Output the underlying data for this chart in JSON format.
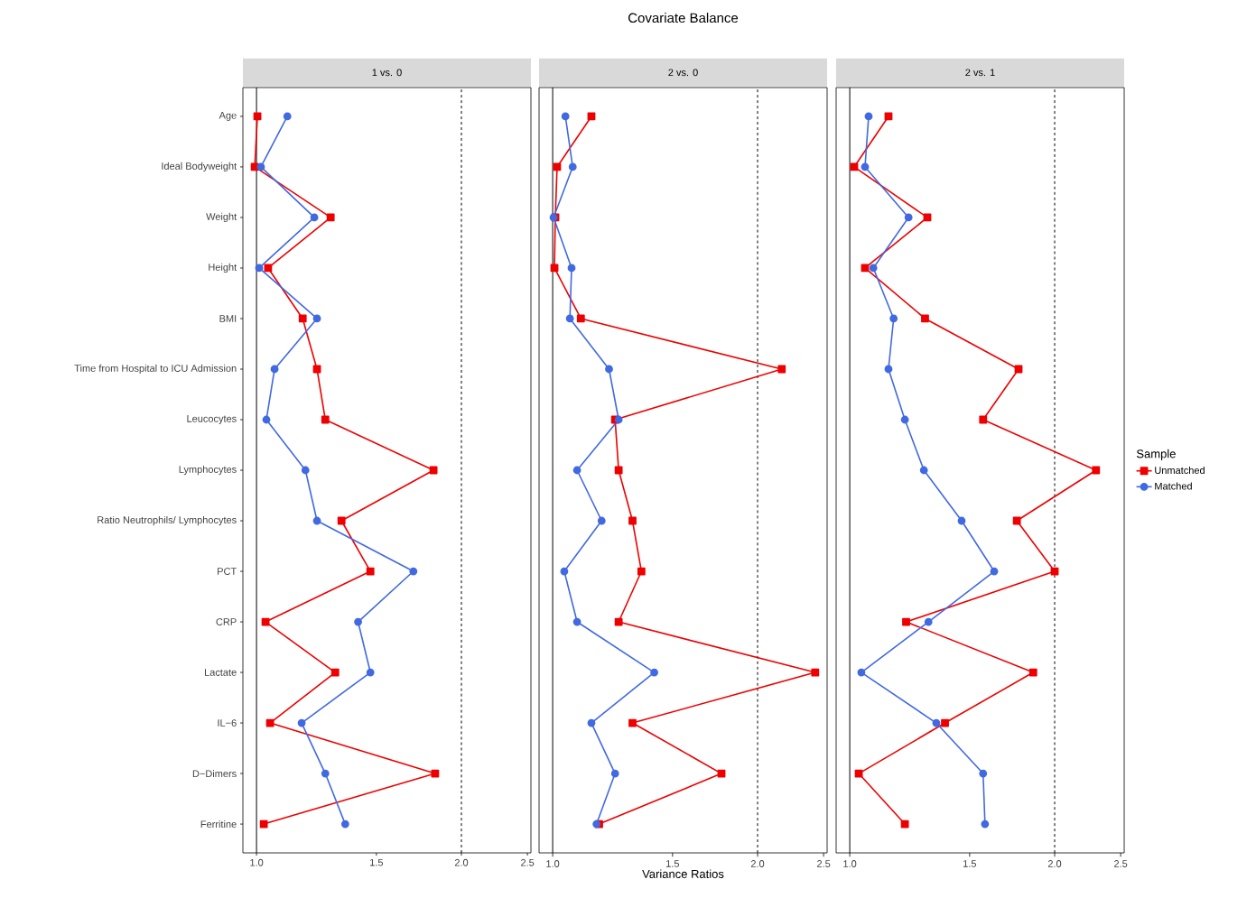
{
  "chart_data": [
    {
      "type": "line",
      "orientation": "horizontal",
      "subtitle": "1 vs. 0",
      "log": "x",
      "categories": [
        "Age",
        "Ideal Bodyweight",
        "Weight",
        "Height",
        "BMI",
        "Time from Hospital to ICU Admission",
        "Leucocytes",
        "Lymphocytes",
        "Ratio Neutrophils/ Lymphocytes",
        "PCT",
        "CRP",
        "Lactate",
        "IL−6",
        "D−Dimers",
        "Ferritine"
      ],
      "xlim": [
        0.955,
        2.53
      ],
      "xticks": [
        {
          "value": 1,
          "label": "1.0"
        },
        {
          "value": 1.5,
          "label": "1.5"
        },
        {
          "value": 2,
          "label": "2.0"
        },
        {
          "value": 2.5,
          "label": "2.5"
        }
      ],
      "ref_lines": [
        {
          "axis": "x",
          "value": 1,
          "line_style": "solid"
        },
        {
          "axis": "x",
          "value": 2,
          "line_style": "dashed"
        }
      ],
      "series": [
        {
          "color": "#ee0000",
          "marker": "square",
          "values": [
            1.003,
            0.994,
            1.285,
            1.04,
            1.169,
            1.227,
            1.262,
            1.82,
            1.333,
            1.47,
            1.031,
            1.305,
            1.047,
            1.83,
            1.025
          ]
        },
        {
          "color": "#4169e1",
          "marker": "circle",
          "values": [
            1.11,
            1.015,
            1.216,
            1.009,
            1.227,
            1.063,
            1.034,
            1.18,
            1.227,
            1.7,
            1.41,
            1.47,
            1.165,
            1.262,
            1.35
          ]
        }
      ]
    },
    {
      "type": "line",
      "orientation": "horizontal",
      "title": "Covariate Balance",
      "subtitle": "2 vs. 0",
      "xlabel": "Variance Ratios",
      "log": "x",
      "tick_labels": "x",
      "categories": [
        null,
        null,
        null,
        null,
        null,
        null,
        null,
        null,
        null,
        null,
        null,
        null,
        null,
        null,
        null
      ],
      "xlim": [
        0.955,
        2.53
      ],
      "xticks": [
        {
          "value": 1,
          "label": "1.0"
        },
        {
          "value": 1.5,
          "label": "1.5"
        },
        {
          "value": 2,
          "label": "2.0"
        },
        {
          "value": 2.5,
          "label": "2.5"
        }
      ],
      "ref_lines": [
        {
          "axis": "x",
          "value": 1,
          "line_style": "solid"
        },
        {
          "axis": "x",
          "value": 2,
          "line_style": "dashed"
        }
      ],
      "series": [
        {
          "color": "#ee0000",
          "marker": "square",
          "values": [
            1.14,
            1.015,
            1.009,
            1.006,
            1.1,
            2.17,
            1.235,
            1.25,
            1.31,
            1.35,
            1.25,
            2.43,
            1.31,
            1.77,
            1.17
          ]
        },
        {
          "color": "#4169e1",
          "marker": "circle",
          "values": [
            1.044,
            1.07,
            1.003,
            1.066,
            1.06,
            1.21,
            1.25,
            1.086,
            1.18,
            1.04,
            1.086,
            1.41,
            1.14,
            1.235,
            1.16
          ]
        }
      ]
    },
    {
      "type": "line",
      "orientation": "horizontal",
      "subtitle": "2 vs. 1",
      "log": "x",
      "tick_labels": "x",
      "legend": "right",
      "legend_title": "Sample",
      "categories": [
        null,
        null,
        null,
        null,
        null,
        null,
        null,
        null,
        null,
        null,
        null,
        null,
        null,
        null,
        null
      ],
      "xlim": [
        0.955,
        2.53
      ],
      "xticks": [
        {
          "value": 1,
          "label": "1.0"
        },
        {
          "value": 1.5,
          "label": "1.5"
        },
        {
          "value": 2,
          "label": "2.0"
        },
        {
          "value": 2.5,
          "label": "2.5"
        }
      ],
      "ref_lines": [
        {
          "axis": "x",
          "value": 1,
          "line_style": "solid"
        },
        {
          "axis": "x",
          "value": 2,
          "line_style": "dashed"
        }
      ],
      "series": [
        {
          "name": "Unmatched",
          "color": "#ee0000",
          "marker": "square",
          "values": [
            1.14,
            1.015,
            1.3,
            1.053,
            1.29,
            1.77,
            1.57,
            2.3,
            1.76,
            2.0,
            1.21,
            1.86,
            1.38,
            1.031,
            1.205
          ]
        },
        {
          "name": "Matched",
          "color": "#4169e1",
          "marker": "circle",
          "values": [
            1.066,
            1.053,
            1.22,
            1.083,
            1.16,
            1.14,
            1.205,
            1.285,
            1.46,
            1.63,
            1.305,
            1.04,
            1.34,
            1.57,
            1.58
          ]
        }
      ]
    }
  ]
}
